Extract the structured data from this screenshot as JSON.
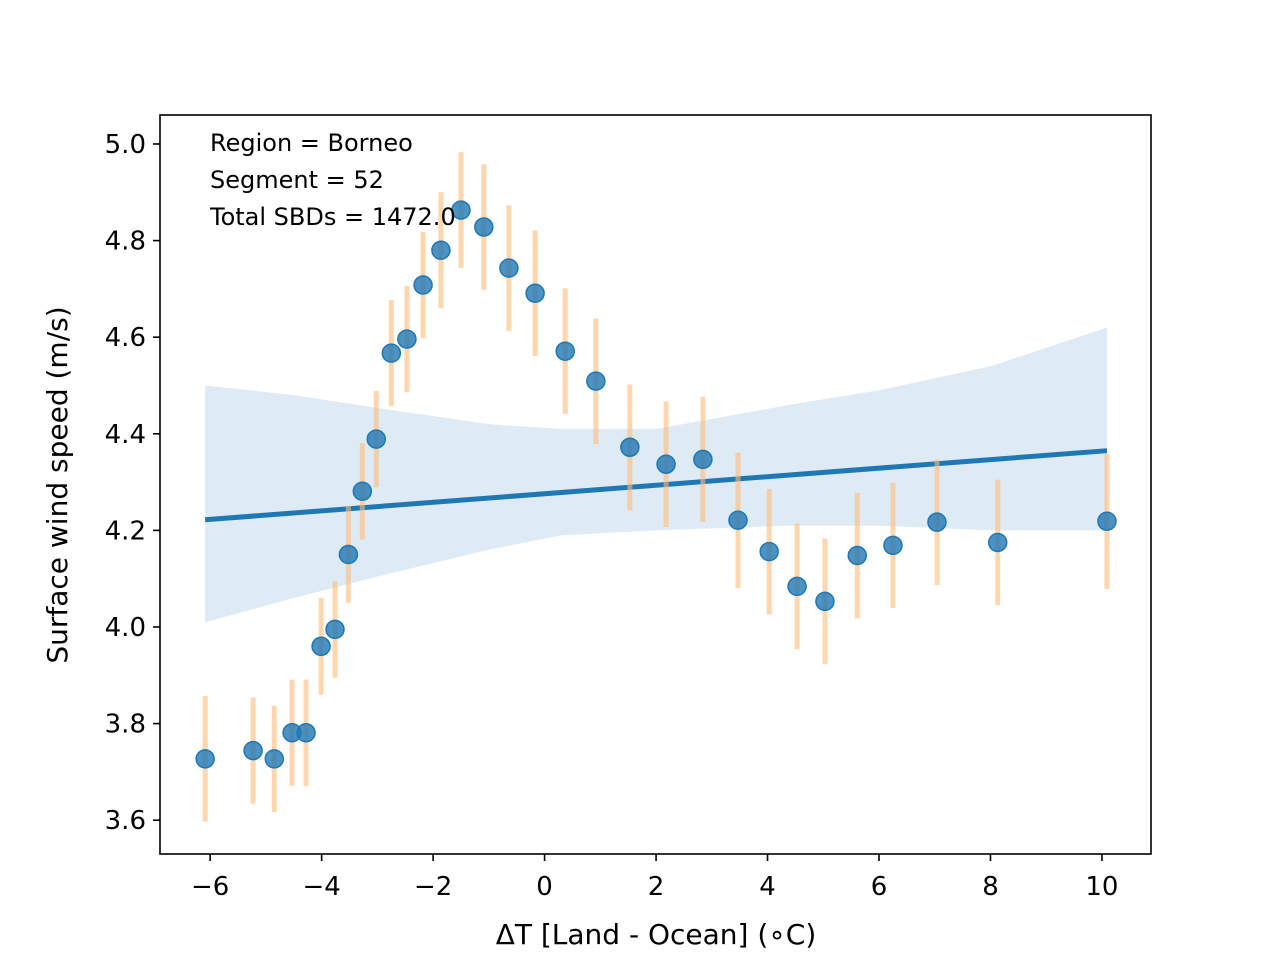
{
  "chart_data": {
    "type": "scatter",
    "title": "",
    "xlabel": "ΔT [Land - Ocean] (∘C)",
    "ylabel": "Surface wind speed (m/s)",
    "xlim": [
      -6.9,
      10.88
    ],
    "ylim": [
      3.53,
      5.06
    ],
    "xticks": [
      -6,
      -4,
      -2,
      0,
      2,
      4,
      6,
      8,
      10
    ],
    "xtick_labels": [
      "−6",
      "−4",
      "−2",
      "0",
      "2",
      "4",
      "6",
      "8",
      "10"
    ],
    "yticks": [
      3.6,
      3.8,
      4.0,
      4.2,
      4.4,
      4.6,
      4.8,
      5.0
    ],
    "ytick_labels": [
      "3.6",
      "3.8",
      "4.0",
      "4.2",
      "4.4",
      "4.6",
      "4.8",
      "5.0"
    ],
    "grid": false,
    "annotations": [
      "Region = Borneo",
      "Segment = 52",
      "Total SBDs = 1472.0"
    ],
    "colors": {
      "points": "#1f77b4",
      "errorbars": "#ffbb78",
      "regression": "#1f77b4",
      "band": "#1f77b4"
    },
    "points": {
      "x": [
        -6.09,
        -5.23,
        -4.85,
        -4.53,
        -4.28,
        -4.01,
        -3.76,
        -3.52,
        -3.27,
        -3.02,
        -2.75,
        -2.47,
        -2.18,
        -1.86,
        -1.5,
        -1.09,
        -0.64,
        -0.17,
        0.37,
        0.92,
        1.53,
        2.18,
        2.84,
        3.47,
        4.03,
        4.53,
        5.03,
        5.61,
        6.25,
        7.04,
        8.13,
        10.09
      ],
      "y": [
        3.727,
        3.744,
        3.727,
        3.781,
        3.781,
        3.96,
        3.995,
        4.15,
        4.281,
        4.389,
        4.567,
        4.596,
        4.708,
        4.78,
        4.863,
        4.828,
        4.743,
        4.691,
        4.571,
        4.509,
        4.372,
        4.337,
        4.347,
        4.221,
        4.156,
        4.084,
        4.053,
        4.148,
        4.169,
        4.217,
        4.175,
        4.219
      ],
      "yerr": [
        0.13,
        0.11,
        0.11,
        0.11,
        0.11,
        0.1,
        0.1,
        0.1,
        0.1,
        0.1,
        0.11,
        0.11,
        0.11,
        0.12,
        0.12,
        0.13,
        0.13,
        0.13,
        0.13,
        0.13,
        0.13,
        0.13,
        0.13,
        0.14,
        0.13,
        0.13,
        0.13,
        0.13,
        0.13,
        0.13,
        0.13,
        0.14
      ]
    },
    "regression": {
      "x": [
        -6.09,
        10.09
      ],
      "y": [
        4.222,
        4.365
      ]
    },
    "confidence_band": {
      "x": [
        -6.09,
        -4.5,
        -2.8,
        -1.0,
        0.3,
        2.0,
        4.4,
        6.0,
        8.0,
        10.09
      ],
      "upper": [
        4.5,
        4.48,
        4.45,
        4.42,
        4.41,
        4.41,
        4.46,
        4.49,
        4.54,
        4.62
      ],
      "lower": [
        4.01,
        4.06,
        4.11,
        4.16,
        4.19,
        4.2,
        4.21,
        4.21,
        4.2,
        4.2
      ]
    }
  }
}
